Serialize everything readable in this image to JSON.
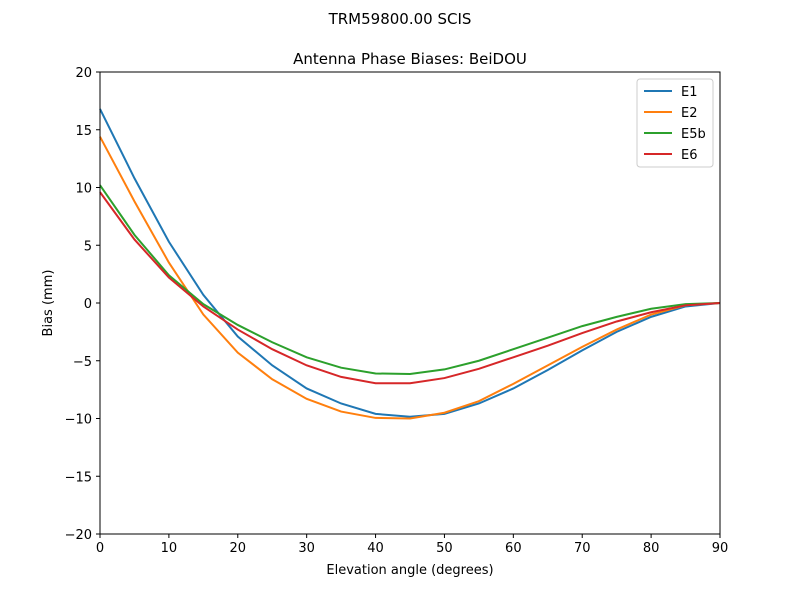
{
  "suptitle": "TRM59800.00     SCIS",
  "chart_data": {
    "type": "line",
    "title": "Antenna Phase Biases: BeiDOU",
    "xlabel": "Elevation angle (degrees)",
    "ylabel": "Bias (mm)",
    "xlim": [
      0,
      90
    ],
    "ylim": [
      -20,
      20
    ],
    "xticks": [
      0,
      10,
      20,
      30,
      40,
      50,
      60,
      70,
      80,
      90
    ],
    "yticks": [
      20,
      15,
      10,
      5,
      0,
      -5,
      -10,
      -15,
      -20
    ],
    "ytick_labels": [
      "20",
      "15",
      "10",
      "5",
      "0",
      "−5",
      "−10",
      "−15",
      "−20"
    ],
    "grid": false,
    "legend_position": "top-right",
    "x": [
      0,
      5,
      10,
      15,
      20,
      25,
      30,
      35,
      40,
      45,
      50,
      55,
      60,
      65,
      70,
      75,
      80,
      85,
      90
    ],
    "series": [
      {
        "name": "E1",
        "color": "#1f77b4",
        "values": [
          16.8,
          10.8,
          5.3,
          0.7,
          -2.9,
          -5.4,
          -7.4,
          -8.7,
          -9.6,
          -9.85,
          -9.6,
          -8.7,
          -7.4,
          -5.8,
          -4.1,
          -2.5,
          -1.2,
          -0.3,
          0
        ]
      },
      {
        "name": "E2",
        "color": "#ff7f0e",
        "values": [
          14.4,
          8.8,
          3.5,
          -1.0,
          -4.3,
          -6.6,
          -8.3,
          -9.4,
          -9.95,
          -10.0,
          -9.5,
          -8.5,
          -7.0,
          -5.4,
          -3.8,
          -2.3,
          -1.0,
          -0.2,
          0
        ]
      },
      {
        "name": "E5b",
        "color": "#2ca02c",
        "values": [
          10.2,
          5.9,
          2.4,
          -0.1,
          -1.9,
          -3.4,
          -4.7,
          -5.6,
          -6.1,
          -6.15,
          -5.75,
          -5.0,
          -4.0,
          -3.0,
          -2.0,
          -1.2,
          -0.5,
          -0.1,
          0
        ]
      },
      {
        "name": "E6",
        "color": "#d62728",
        "values": [
          9.6,
          5.5,
          2.2,
          -0.3,
          -2.3,
          -4.0,
          -5.4,
          -6.4,
          -6.95,
          -6.95,
          -6.5,
          -5.7,
          -4.7,
          -3.7,
          -2.6,
          -1.6,
          -0.8,
          -0.2,
          0
        ]
      }
    ]
  }
}
